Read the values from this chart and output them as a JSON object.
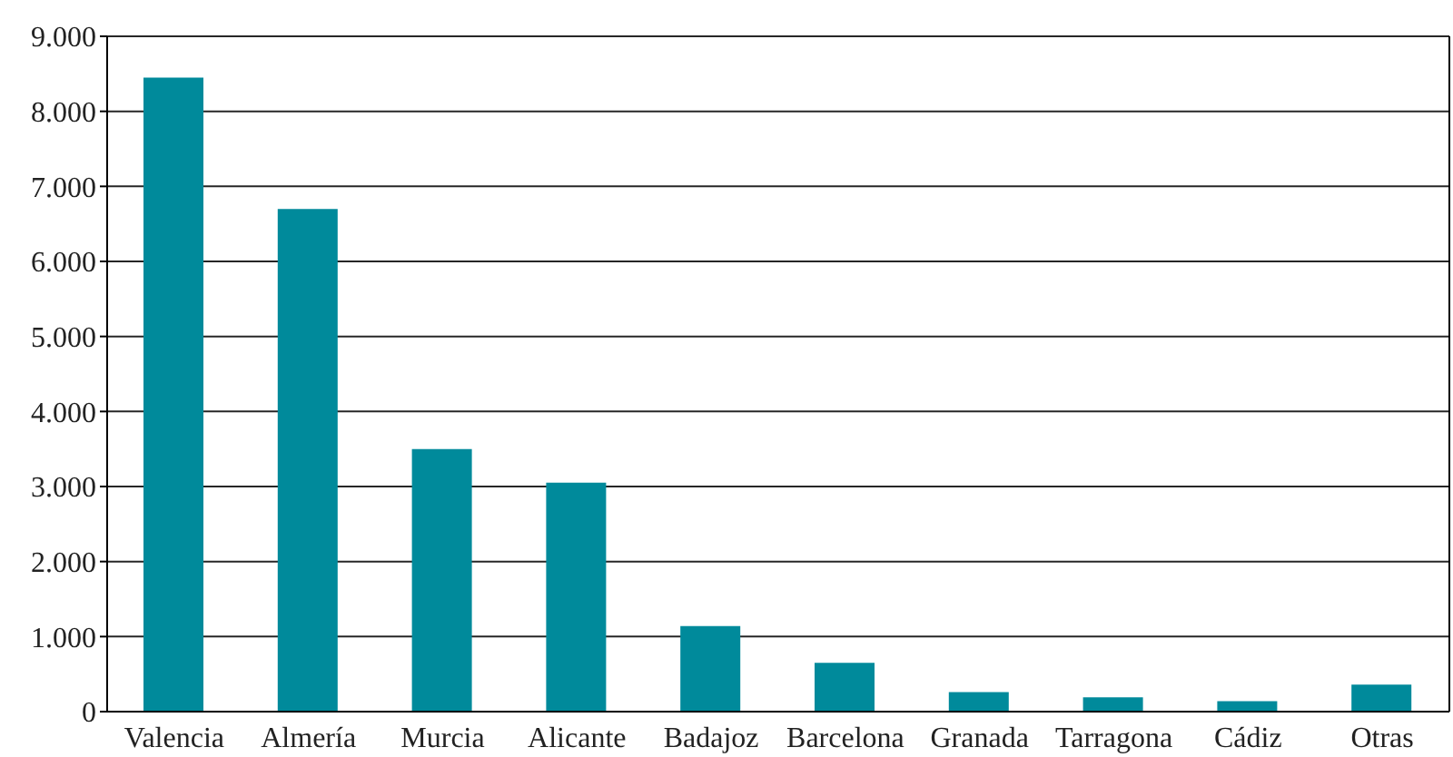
{
  "chart_data": {
    "type": "bar",
    "categories": [
      "Valencia",
      "Almería",
      "Murcia",
      "Alicante",
      "Badajoz",
      "Barcelona",
      "Granada",
      "Tarragona",
      "Cádiz",
      "Otras"
    ],
    "values": [
      8450,
      6700,
      3500,
      3050,
      1140,
      650,
      260,
      190,
      140,
      360
    ],
    "color": "#008a9b",
    "ylim": [
      0,
      9000
    ],
    "yticks": [
      0,
      {
        "value": 1000,
        "label": "1.000"
      },
      {
        "value": 2000,
        "label": "2.000"
      },
      {
        "value": 3000,
        "label": "3.000"
      },
      {
        "value": 4000,
        "label": "4.000"
      },
      {
        "value": 5000,
        "label": "5.000"
      },
      {
        "value": 6000,
        "label": "6.000"
      },
      {
        "value": 7000,
        "label": "7.000"
      },
      {
        "value": 8000,
        "label": "8.000"
      },
      {
        "value": 9000,
        "label": "9.000"
      }
    ],
    "grid": "y"
  }
}
